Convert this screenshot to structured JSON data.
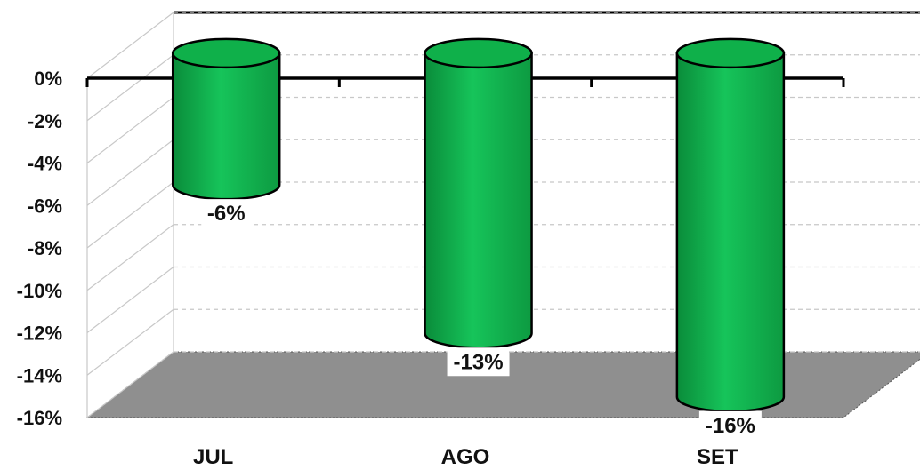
{
  "chart_data": {
    "type": "bar",
    "style": "3d-cylinder",
    "categories": [
      "JUL",
      "AGO",
      "SET"
    ],
    "values": [
      -6,
      -13,
      -16
    ],
    "data_labels": [
      "-6%",
      "-13%",
      "-16%"
    ],
    "ylim": [
      -16,
      0
    ],
    "y_ticks": [
      "0%",
      "-2%",
      "-4%",
      "-6%",
      "-8%",
      "-10%",
      "-12%",
      "-14%",
      "-16%"
    ],
    "grid": true,
    "legend": "none",
    "title": "",
    "xlabel": "",
    "ylabel": "",
    "colors": {
      "bar_fill": "#0fb04a",
      "bar_highlight": "#3ed878",
      "bar_outline": "#000000",
      "floor": "#8f8f8f",
      "gridline": "#c8c8c8"
    }
  }
}
